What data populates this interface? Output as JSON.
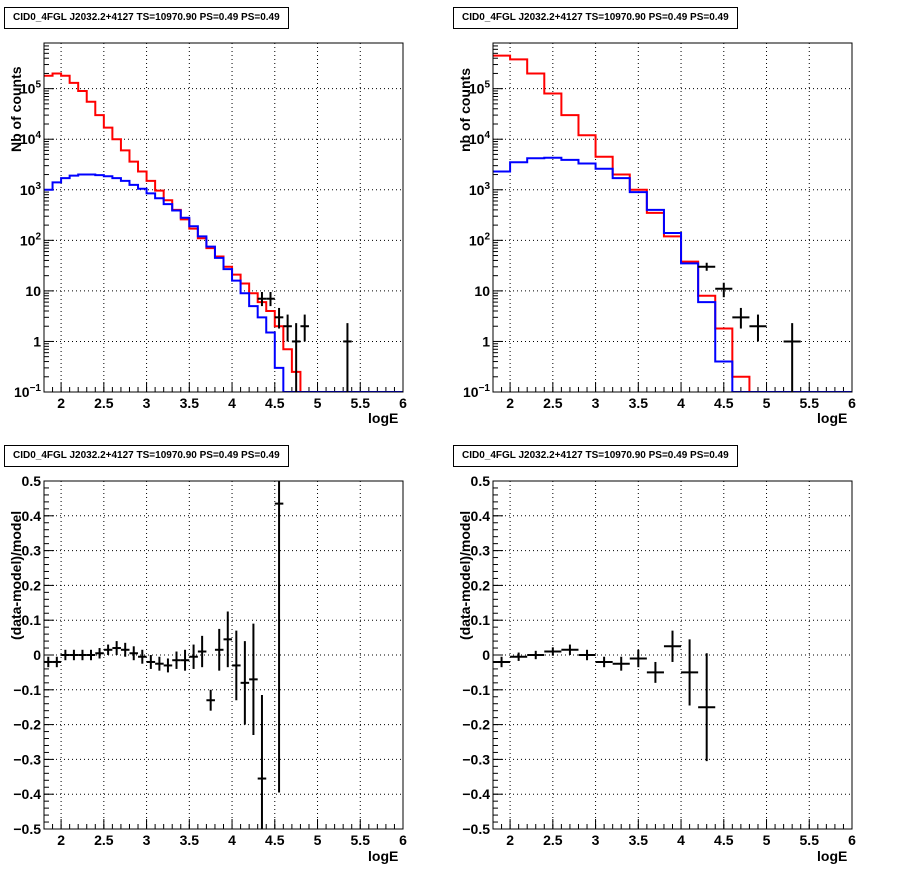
{
  "chart_data": [
    {
      "type": "histogram",
      "title": "CID0_4FGL J2032.2+4127 TS=10970.90 PS=0.49 PS=0.49",
      "xlabel": "logE",
      "ylabel": "Nb of counts",
      "xlim": [
        1.8,
        6.0
      ],
      "ylim": [
        0.1,
        800000
      ],
      "yscale": "log",
      "grid": true,
      "xticks": [
        "2",
        "2.5",
        "3",
        "3.5",
        "4",
        "4.5",
        "5",
        "5.5",
        "6"
      ],
      "yticks": [
        "10⁻¹",
        "1",
        "10",
        "10²",
        "10³",
        "10⁴",
        "10⁵"
      ],
      "bin_edges": [
        1.8,
        1.9,
        2.0,
        2.1,
        2.2,
        2.3,
        2.4,
        2.5,
        2.6,
        2.7,
        2.8,
        2.9,
        3.0,
        3.1,
        3.2,
        3.3,
        3.4,
        3.5,
        3.6,
        3.7,
        3.8,
        3.9,
        4.0,
        4.1,
        4.2,
        4.3,
        4.4,
        4.5,
        4.6,
        4.7,
        4.8,
        4.9,
        5.0,
        5.1,
        5.2,
        5.3,
        5.4,
        5.5,
        5.6,
        5.7,
        5.8,
        5.9,
        6.0
      ],
      "series": [
        {
          "color": "#ff0000",
          "style": "hist",
          "values": [
            180000,
            200000,
            180000,
            130000,
            90000,
            55000,
            30000,
            17000,
            10000,
            6000,
            3600,
            2300,
            1500,
            960,
            620,
            400,
            260,
            170,
            110,
            70,
            48,
            30,
            21,
            14,
            9,
            6,
            4,
            2,
            0.7,
            0.25,
            0.1,
            0.1,
            0.1,
            0.1,
            0.1,
            0.1,
            0.1,
            0.1,
            0.1,
            0.1,
            0.1,
            0.1
          ]
        },
        {
          "color": "#0000ff",
          "style": "hist",
          "values": [
            1000,
            1400,
            1700,
            1900,
            2000,
            2000,
            1950,
            1850,
            1700,
            1500,
            1250,
            1050,
            850,
            680,
            520,
            390,
            280,
            190,
            120,
            75,
            45,
            27,
            16,
            9,
            5,
            3,
            1.5,
            0.3,
            0.05,
            0.05,
            0.05,
            0.05,
            0.05,
            0.05,
            0.05,
            0.05,
            0.05,
            0.05,
            0.05,
            0.05,
            0.05,
            0.05
          ]
        }
      ],
      "data_points": [
        {
          "x": 4.35,
          "y": 7,
          "ylo": 5,
          "yhi": 9.5
        },
        {
          "x": 4.45,
          "y": 7,
          "ylo": 5,
          "yhi": 9.5
        },
        {
          "x": 4.55,
          "y": 3,
          "ylo": 1.8,
          "yhi": 4.6
        },
        {
          "x": 4.65,
          "y": 2,
          "ylo": 1,
          "yhi": 3.4
        },
        {
          "x": 4.75,
          "y": 1,
          "ylo": 0.1,
          "yhi": 2.3
        },
        {
          "x": 4.85,
          "y": 2,
          "ylo": 1,
          "yhi": 3.4
        },
        {
          "x": 5.35,
          "y": 1,
          "ylo": 0.1,
          "yhi": 2.3
        }
      ]
    },
    {
      "type": "histogram",
      "title": "CID0_4FGL J2032.2+4127 TS=10970.90 PS=0.49 PS=0.49",
      "xlabel": "logE",
      "ylabel": "nb of counts",
      "xlim": [
        1.8,
        6.0
      ],
      "ylim": [
        0.1,
        800000
      ],
      "yscale": "log",
      "grid": true,
      "xticks": [
        "2",
        "2.5",
        "3",
        "3.5",
        "4",
        "4.5",
        "5",
        "5.5",
        "6"
      ],
      "yticks": [
        "10⁻¹",
        "1",
        "10",
        "10²",
        "10³",
        "10⁴",
        "10⁵"
      ],
      "bin_edges": [
        1.8,
        2.0,
        2.2,
        2.4,
        2.6,
        2.8,
        3.0,
        3.2,
        3.4,
        3.6,
        3.8,
        4.0,
        4.2,
        4.4,
        4.6,
        4.8,
        5.0,
        5.2,
        5.4,
        5.6,
        5.8,
        6.0
      ],
      "series": [
        {
          "color": "#ff0000",
          "style": "hist",
          "values": [
            450000,
            380000,
            200000,
            80000,
            30000,
            12000,
            4500,
            2000,
            1000,
            350,
            120,
            38,
            8,
            1.8,
            0.2,
            0.1,
            0.1,
            0.1,
            0.1,
            0.1,
            0.1
          ]
        },
        {
          "color": "#0000ff",
          "style": "hist",
          "values": [
            2300,
            3500,
            4200,
            4300,
            3900,
            3300,
            2600,
            1700,
            900,
            400,
            140,
            35,
            6,
            0.4,
            0.1,
            0.1,
            0.1,
            0.1,
            0.1,
            0.1,
            0.1
          ]
        }
      ],
      "data_points": [
        {
          "x": 4.3,
          "y": 30,
          "ylo": 25,
          "yhi": 36
        },
        {
          "x": 4.5,
          "y": 11,
          "ylo": 7.5,
          "yhi": 14.5
        },
        {
          "x": 4.7,
          "y": 3,
          "ylo": 1.8,
          "yhi": 4.6
        },
        {
          "x": 4.9,
          "y": 2,
          "ylo": 1,
          "yhi": 3.4
        },
        {
          "x": 5.3,
          "y": 1,
          "ylo": 0.1,
          "yhi": 2.3
        }
      ]
    },
    {
      "type": "scatter",
      "title": "CID0_4FGL J2032.2+4127 TS=10970.90 PS=0.49 PS=0.49",
      "xlabel": "logE",
      "ylabel": "(data-model)/model",
      "xlim": [
        1.8,
        6.0
      ],
      "ylim": [
        -0.5,
        0.5
      ],
      "grid": true,
      "xticks": [
        "2",
        "2.5",
        "3",
        "3.5",
        "4",
        "4.5",
        "5",
        "5.5",
        "6"
      ],
      "yticks": [
        "−0.5",
        "−0.4",
        "−0.3",
        "−0.2",
        "−0.1",
        "0",
        "0.1",
        "0.2",
        "0.3",
        "0.4",
        "0.5"
      ],
      "xerr": 0.05,
      "points": [
        {
          "x": 1.85,
          "y": -0.02,
          "e": 0.015
        },
        {
          "x": 1.95,
          "y": -0.02,
          "e": 0.015
        },
        {
          "x": 2.05,
          "y": 0.0,
          "e": 0.015
        },
        {
          "x": 2.15,
          "y": 0.0,
          "e": 0.015
        },
        {
          "x": 2.25,
          "y": 0.0,
          "e": 0.015
        },
        {
          "x": 2.35,
          "y": 0.0,
          "e": 0.015
        },
        {
          "x": 2.45,
          "y": 0.005,
          "e": 0.015
        },
        {
          "x": 2.55,
          "y": 0.015,
          "e": 0.015
        },
        {
          "x": 2.65,
          "y": 0.02,
          "e": 0.02
        },
        {
          "x": 2.75,
          "y": 0.015,
          "e": 0.02
        },
        {
          "x": 2.85,
          "y": 0.005,
          "e": 0.02
        },
        {
          "x": 2.95,
          "y": -0.005,
          "e": 0.02
        },
        {
          "x": 3.05,
          "y": -0.02,
          "e": 0.02
        },
        {
          "x": 3.15,
          "y": -0.025,
          "e": 0.02
        },
        {
          "x": 3.25,
          "y": -0.03,
          "e": 0.02
        },
        {
          "x": 3.35,
          "y": -0.015,
          "e": 0.025
        },
        {
          "x": 3.45,
          "y": -0.015,
          "e": 0.03
        },
        {
          "x": 3.55,
          "y": -0.005,
          "e": 0.035
        },
        {
          "x": 3.65,
          "y": 0.01,
          "e": 0.045
        },
        {
          "x": 3.75,
          "y": -0.13,
          "e": 0.03
        },
        {
          "x": 3.85,
          "y": 0.015,
          "e": 0.06
        },
        {
          "x": 3.95,
          "y": 0.045,
          "e": 0.08
        },
        {
          "x": 4.05,
          "y": -0.03,
          "e": 0.1
        },
        {
          "x": 4.15,
          "y": -0.08,
          "e": 0.12
        },
        {
          "x": 4.25,
          "y": -0.07,
          "e": 0.16
        },
        {
          "x": 4.35,
          "y": -0.355,
          "e": 0.24
        },
        {
          "x": 4.55,
          "y": 0.435,
          "e": 0.83
        }
      ]
    },
    {
      "type": "scatter",
      "title": "CID0_4FGL J2032.2+4127 TS=10970.90 PS=0.49 PS=0.49",
      "xlabel": "logE",
      "ylabel": "(data-model)/model",
      "xlim": [
        1.8,
        6.0
      ],
      "ylim": [
        -0.5,
        0.5
      ],
      "grid": true,
      "xticks": [
        "2",
        "2.5",
        "3",
        "3.5",
        "4",
        "4.5",
        "5",
        "5.5",
        "6"
      ],
      "yticks": [
        "−0.5",
        "−0.4",
        "−0.3",
        "−0.2",
        "−0.1",
        "0",
        "0.1",
        "0.2",
        "0.3",
        "0.4",
        "0.5"
      ],
      "xerr": 0.1,
      "points": [
        {
          "x": 1.9,
          "y": -0.02,
          "e": 0.015
        },
        {
          "x": 2.1,
          "y": -0.005,
          "e": 0.012
        },
        {
          "x": 2.3,
          "y": 0.0,
          "e": 0.012
        },
        {
          "x": 2.5,
          "y": 0.01,
          "e": 0.012
        },
        {
          "x": 2.7,
          "y": 0.015,
          "e": 0.015
        },
        {
          "x": 2.9,
          "y": 0.0,
          "e": 0.015
        },
        {
          "x": 3.1,
          "y": -0.02,
          "e": 0.015
        },
        {
          "x": 3.3,
          "y": -0.025,
          "e": 0.02
        },
        {
          "x": 3.5,
          "y": -0.01,
          "e": 0.025
        },
        {
          "x": 3.7,
          "y": -0.05,
          "e": 0.03
        },
        {
          "x": 3.9,
          "y": 0.025,
          "e": 0.045
        },
        {
          "x": 4.1,
          "y": -0.05,
          "e": 0.095
        },
        {
          "x": 4.3,
          "y": -0.15,
          "e": 0.155
        }
      ]
    }
  ]
}
